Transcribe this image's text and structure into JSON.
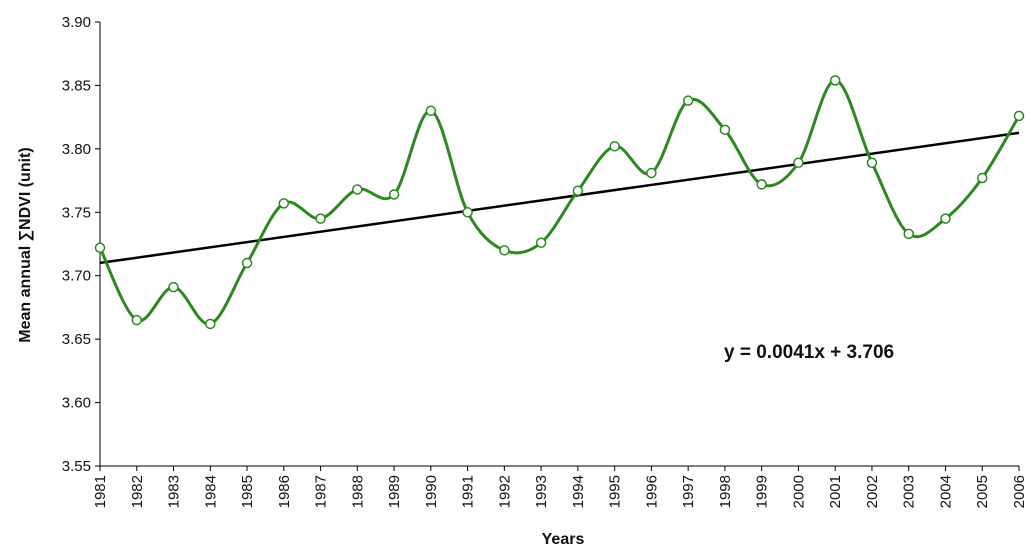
{
  "chart_data": {
    "type": "line",
    "title": "",
    "xlabel": "Years",
    "ylabel": "Mean annual ∑NDVI (unit)",
    "ylim": [
      3.55,
      3.9
    ],
    "yticks": [
      "3.55",
      "3.60",
      "3.65",
      "3.70",
      "3.75",
      "3.80",
      "3.85",
      "3.90"
    ],
    "grid": false,
    "legend": "none",
    "x": [
      "1981",
      "1982",
      "1983",
      "1984",
      "1985",
      "1986",
      "1987",
      "1988",
      "1989",
      "1990",
      "1991",
      "1992",
      "1993",
      "1994",
      "1995",
      "1996",
      "1997",
      "1998",
      "1999",
      "2000",
      "2001",
      "2002",
      "2003",
      "2004",
      "2005",
      "2006"
    ],
    "series": [
      {
        "values": [
          3.722,
          3.665,
          3.691,
          3.662,
          3.71,
          3.757,
          3.745,
          3.768,
          3.764,
          3.83,
          3.75,
          3.72,
          3.726,
          3.767,
          3.802,
          3.781,
          3.838,
          3.815,
          3.772,
          3.789,
          3.854,
          3.789,
          3.733,
          3.745,
          3.777,
          3.826
        ],
        "color": "#2a8a1e",
        "marker": "open-circle",
        "smooth": true
      }
    ],
    "trendline": {
      "slope": 0.0041,
      "intercept": 3.706,
      "color": "#000000",
      "equation": "y = 0.0041x + 3.706"
    }
  }
}
